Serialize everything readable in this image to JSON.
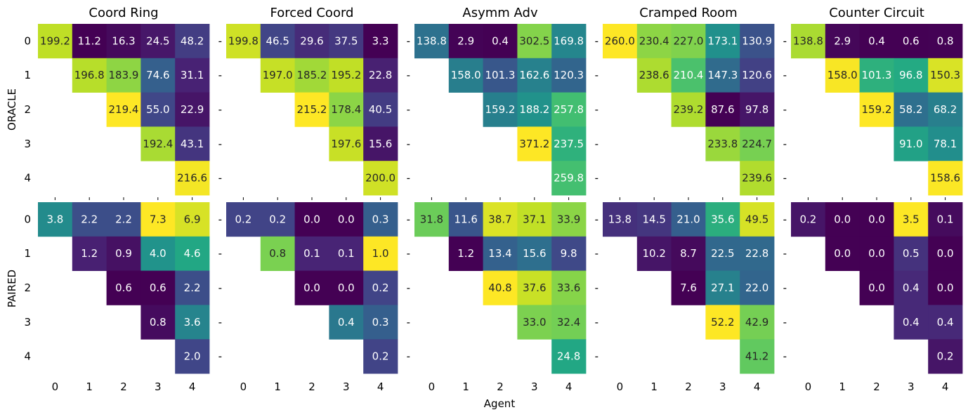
{
  "chart_data": {
    "type": "heatmap",
    "colormap": "viridis",
    "xlabel": "Agent",
    "row_labels": [
      "ORACLE",
      "PAIRED"
    ],
    "tick_labels": [
      "0",
      "1",
      "2",
      "3",
      "4"
    ],
    "tick_mark": "-",
    "panels": [
      {
        "title": "Coord Ring",
        "oracle": [
          [
            199.2,
            11.2,
            16.3,
            24.5,
            48.2
          ],
          [
            null,
            196.8,
            183.9,
            74.6,
            31.1
          ],
          [
            null,
            null,
            219.4,
            55.0,
            22.9
          ],
          [
            null,
            null,
            null,
            192.4,
            43.1
          ],
          [
            null,
            null,
            null,
            null,
            216.6
          ]
        ],
        "paired": [
          [
            3.8,
            2.2,
            2.2,
            7.3,
            6.9
          ],
          [
            null,
            1.2,
            0.9,
            4.0,
            4.6
          ],
          [
            null,
            null,
            0.6,
            0.6,
            2.2
          ],
          [
            null,
            null,
            null,
            0.8,
            3.6
          ],
          [
            null,
            null,
            null,
            null,
            2.0
          ]
        ]
      },
      {
        "title": "Forced Coord",
        "oracle": [
          [
            199.8,
            46.5,
            29.6,
            37.5,
            3.3
          ],
          [
            null,
            197.0,
            185.2,
            195.2,
            22.8
          ],
          [
            null,
            null,
            215.2,
            178.4,
            40.5
          ],
          [
            null,
            null,
            null,
            197.6,
            15.6
          ],
          [
            null,
            null,
            null,
            null,
            200.0
          ]
        ],
        "paired": [
          [
            0.2,
            0.2,
            0.0,
            0.0,
            0.3
          ],
          [
            null,
            0.8,
            0.1,
            0.1,
            1.0
          ],
          [
            null,
            null,
            0.0,
            0.0,
            0.2
          ],
          [
            null,
            null,
            null,
            0.4,
            0.3
          ],
          [
            null,
            null,
            null,
            null,
            0.2
          ]
        ]
      },
      {
        "title": "Asymm Adv",
        "oracle": [
          [
            138.8,
            2.9,
            0.4,
            302.5,
            169.8
          ],
          [
            null,
            158.0,
            101.3,
            162.6,
            120.3
          ],
          [
            null,
            null,
            159.2,
            188.2,
            257.8
          ],
          [
            null,
            null,
            null,
            371.2,
            237.5
          ],
          [
            null,
            null,
            null,
            null,
            259.8
          ]
        ],
        "paired": [
          [
            31.8,
            11.6,
            38.7,
            37.1,
            33.9
          ],
          [
            null,
            1.2,
            13.4,
            15.6,
            9.8
          ],
          [
            null,
            null,
            40.8,
            37.6,
            33.6
          ],
          [
            null,
            null,
            null,
            33.0,
            32.4
          ],
          [
            null,
            null,
            null,
            null,
            24.8
          ]
        ]
      },
      {
        "title": "Cramped Room",
        "oracle": [
          [
            260.0,
            230.4,
            227.0,
            173.1,
            130.9
          ],
          [
            null,
            238.6,
            210.4,
            147.3,
            120.6
          ],
          [
            null,
            null,
            239.2,
            87.6,
            97.8
          ],
          [
            null,
            null,
            null,
            233.8,
            224.7
          ],
          [
            null,
            null,
            null,
            null,
            239.6
          ]
        ],
        "paired": [
          [
            13.8,
            14.5,
            21.0,
            35.6,
            49.5
          ],
          [
            null,
            10.2,
            8.7,
            22.5,
            22.8
          ],
          [
            null,
            null,
            7.6,
            27.1,
            22.0
          ],
          [
            null,
            null,
            null,
            52.2,
            42.9
          ],
          [
            null,
            null,
            null,
            null,
            41.2
          ]
        ]
      },
      {
        "title": "Counter Circuit",
        "oracle": [
          [
            138.8,
            2.9,
            0.4,
            0.6,
            0.8
          ],
          [
            null,
            158.0,
            101.3,
            96.8,
            150.3
          ],
          [
            null,
            null,
            159.2,
            58.2,
            68.2
          ],
          [
            null,
            null,
            null,
            91.0,
            78.1
          ],
          [
            null,
            null,
            null,
            null,
            158.6
          ]
        ],
        "paired": [
          [
            0.2,
            0.0,
            0.0,
            3.5,
            0.1
          ],
          [
            null,
            0.0,
            0.0,
            0.5,
            0.0
          ],
          [
            null,
            null,
            0.0,
            0.4,
            0.0
          ],
          [
            null,
            null,
            null,
            0.4,
            0.4
          ],
          [
            null,
            null,
            null,
            null,
            0.2
          ]
        ]
      }
    ]
  }
}
